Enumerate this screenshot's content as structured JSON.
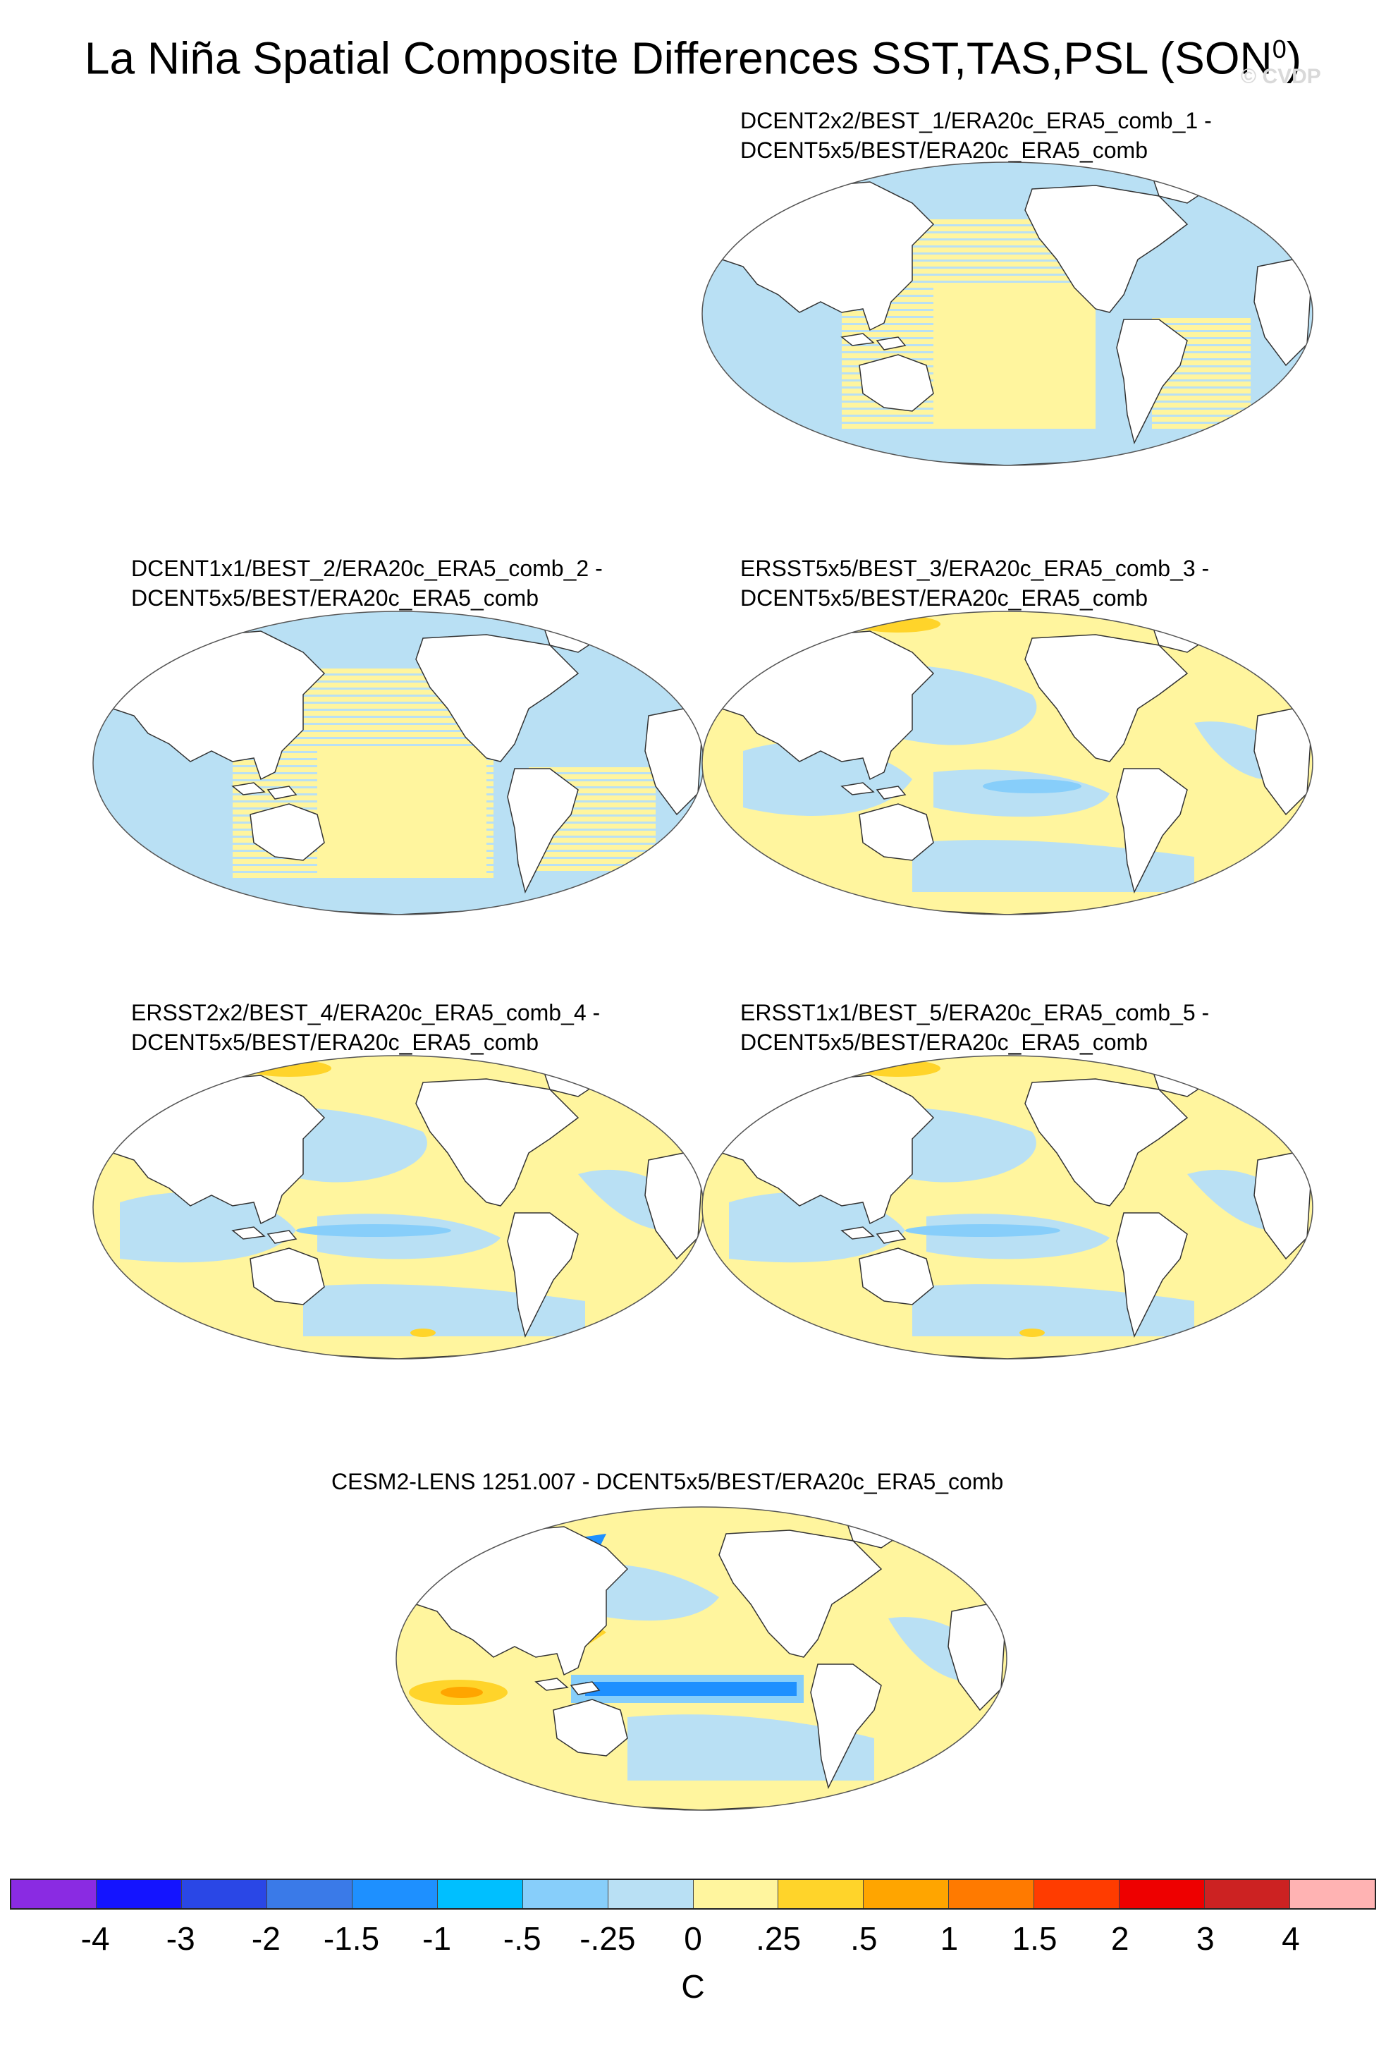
{
  "header": {
    "title": "La Niña Spatial Composite Differences SST,TAS,PSL (SON",
    "title_sup": "0",
    "title_end": ")",
    "watermark": "© CVDP"
  },
  "panels": [
    {
      "line1": "DCENT2x2/BEST_1/ERA20c_ERA5_comb_1 -",
      "line2": "DCENT5x5/BEST/ERA20c_ERA5_comb"
    },
    {
      "line1": "DCENT1x1/BEST_2/ERA20c_ERA5_comb_2 -",
      "line2": "DCENT5x5/BEST/ERA20c_ERA5_comb"
    },
    {
      "line1": "ERSST5x5/BEST_3/ERA20c_ERA5_comb_3 -",
      "line2": "DCENT5x5/BEST/ERA20c_ERA5_comb"
    },
    {
      "line1": "ERSST2x2/BEST_4/ERA20c_ERA5_comb_4 -",
      "line2": "DCENT5x5/BEST/ERA20c_ERA5_comb"
    },
    {
      "line1": "ERSST1x1/BEST_5/ERA20c_ERA5_comb_5 -",
      "line2": "DCENT5x5/BEST/ERA20c_ERA5_comb"
    },
    {
      "line1": "CESM2-LENS 1251.007 - DCENT5x5/BEST/ERA20c_ERA5_comb",
      "line2": ""
    }
  ],
  "colorbar": {
    "unit": "C",
    "ticks": [
      "-4",
      "-3",
      "-2",
      "-1.5",
      "-1",
      "-.5",
      "-.25",
      "0",
      ".25",
      ".5",
      "1",
      "1.5",
      "2",
      "3",
      "4"
    ],
    "colors": [
      "#8a2be2",
      "#1414ff",
      "#2a47e6",
      "#3a7ae8",
      "#1e90ff",
      "#00bfff",
      "#87cefa",
      "#b9e0f4",
      "#fff59e",
      "#ffd42a",
      "#ffa500",
      "#ff7a00",
      "#ff3c00",
      "#ee0000",
      "#cc2222",
      "#ffb3b3"
    ]
  },
  "chart_data": {
    "type": "heatmap",
    "title": "La Niña Spatial Composite Differences SST,TAS,PSL (SON0)",
    "unit": "C",
    "contour_levels": [
      -4,
      -3,
      -2,
      -1.5,
      -1,
      -0.5,
      -0.25,
      0,
      0.25,
      0.5,
      1,
      1.5,
      2,
      3,
      4
    ],
    "panels": [
      "DCENT2x2/BEST_1/ERA20c_ERA5_comb_1 - DCENT5x5/BEST/ERA20c_ERA5_comb",
      "DCENT1x1/BEST_2/ERA20c_ERA5_comb_2 - DCENT5x5/BEST/ERA20c_ERA5_comb",
      "ERSST5x5/BEST_3/ERA20c_ERA5_comb_3 - DCENT5x5/BEST/ERA20c_ERA5_comb",
      "ERSST2x2/BEST_4/ERA20c_ERA5_comb_4 - DCENT5x5/BEST/ERA20c_ERA5_comb",
      "ERSST1x1/BEST_5/ERA20c_ERA5_comb_5 - DCENT5x5/BEST/ERA20c_ERA5_comb",
      "CESM2-LENS 1251.007 - DCENT5x5/BEST/ERA20c_ERA5_comb"
    ]
  }
}
